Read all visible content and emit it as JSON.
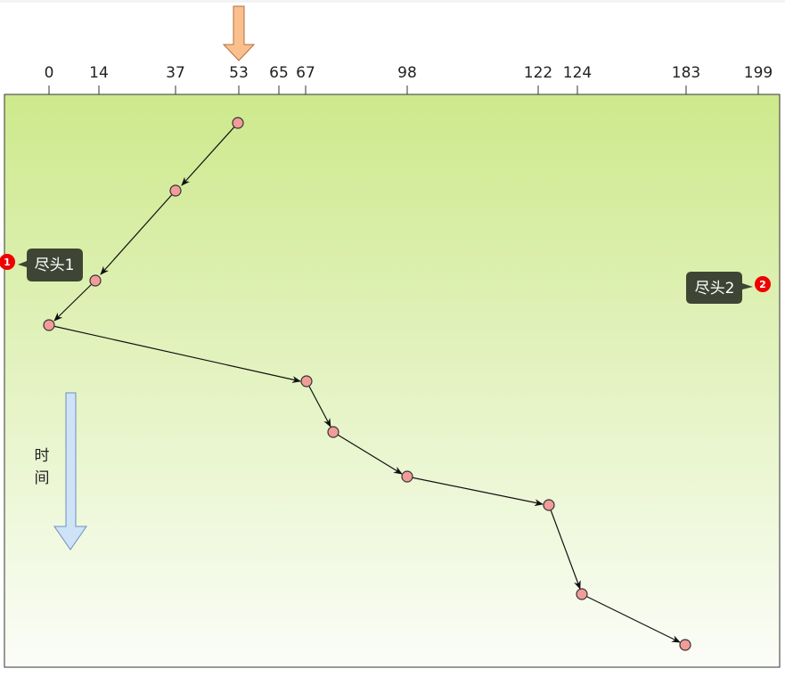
{
  "axis": {
    "ticks": [
      "0",
      "14",
      "37",
      "53",
      "65",
      "67",
      "98",
      "122",
      "124",
      "183",
      "199"
    ]
  },
  "callouts": [
    {
      "badge": "1",
      "label": "尽头1"
    },
    {
      "badge": "2",
      "label": "尽头2"
    }
  ],
  "time_label": [
    "时",
    "间"
  ]
}
